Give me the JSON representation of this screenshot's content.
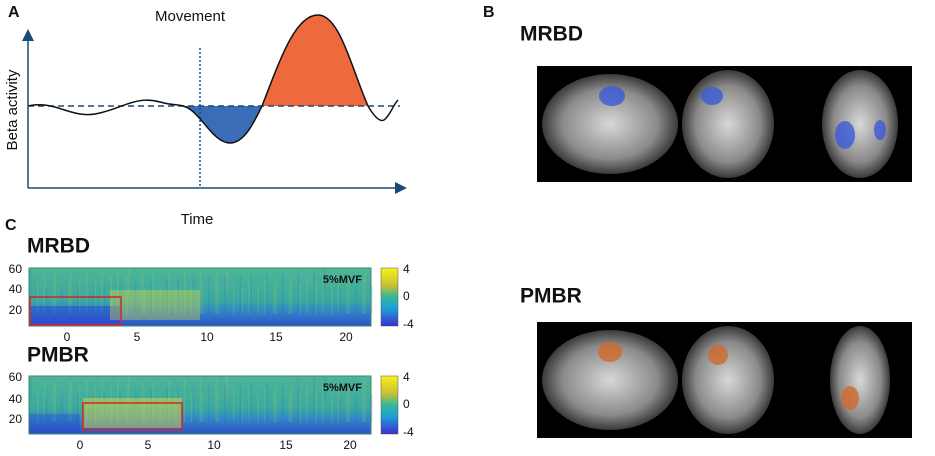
{
  "panels": {
    "a": {
      "label": "A",
      "title": "Movement",
      "y_label": "Beta activity",
      "x_label": "Time"
    },
    "b": {
      "label": "B",
      "maps": [
        "MRBD",
        "PMBR"
      ]
    },
    "c": {
      "label": "C",
      "plots": [
        {
          "title": "MRBD",
          "condition": "5%MVF",
          "yticks": [
            60,
            40,
            20
          ],
          "xticks": [
            0,
            5,
            10,
            15,
            20
          ],
          "colorbar": [
            4,
            0,
            -4
          ]
        },
        {
          "title": "PMBR",
          "condition": "5%MVF",
          "yticks": [
            60,
            40,
            20
          ],
          "xticks": [
            0,
            5,
            10,
            15,
            20
          ],
          "colorbar": [
            4,
            0,
            -4
          ]
        }
      ]
    }
  }
}
